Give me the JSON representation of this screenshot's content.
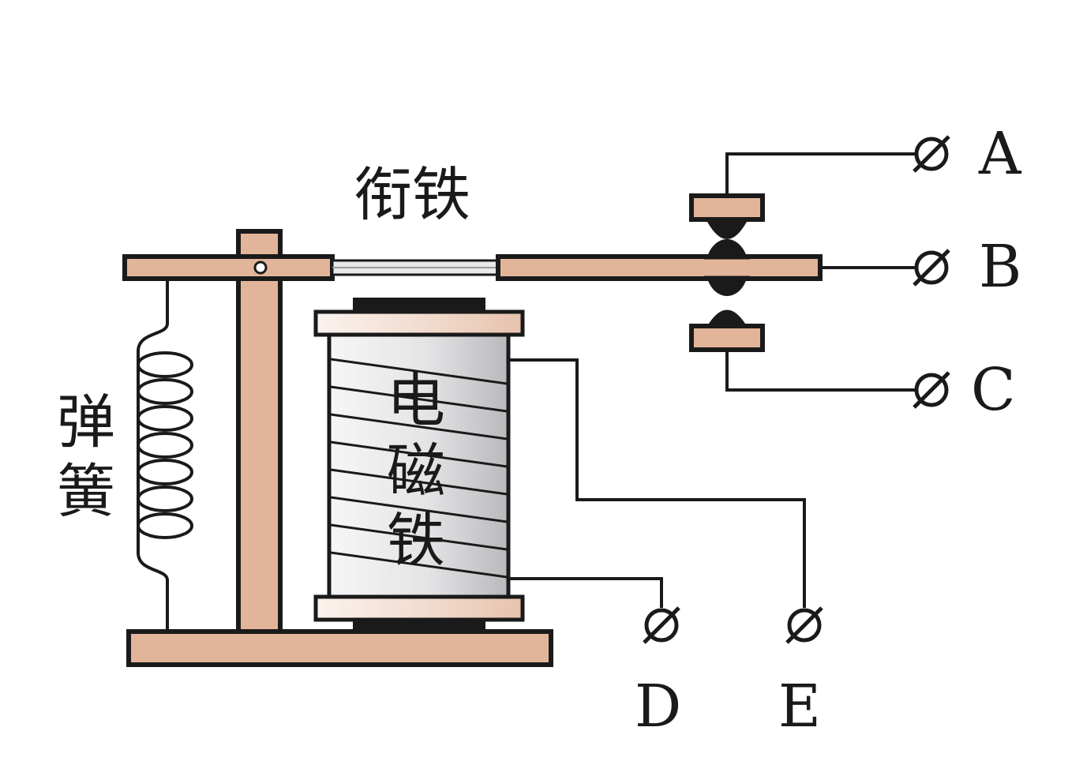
{
  "labels": {
    "armature": "衔铁",
    "spring": [
      "弹",
      "簧"
    ],
    "electromagnet": [
      "电",
      "磁",
      "铁"
    ]
  },
  "terminals": {
    "A": "A",
    "B": "B",
    "C": "C",
    "D": "D",
    "E": "E"
  },
  "colors": {
    "wood": "#e2b59b",
    "outline": "#1a1a1a",
    "coil_light": "#f4f4f4",
    "coil_dark": "#bdbec0"
  }
}
